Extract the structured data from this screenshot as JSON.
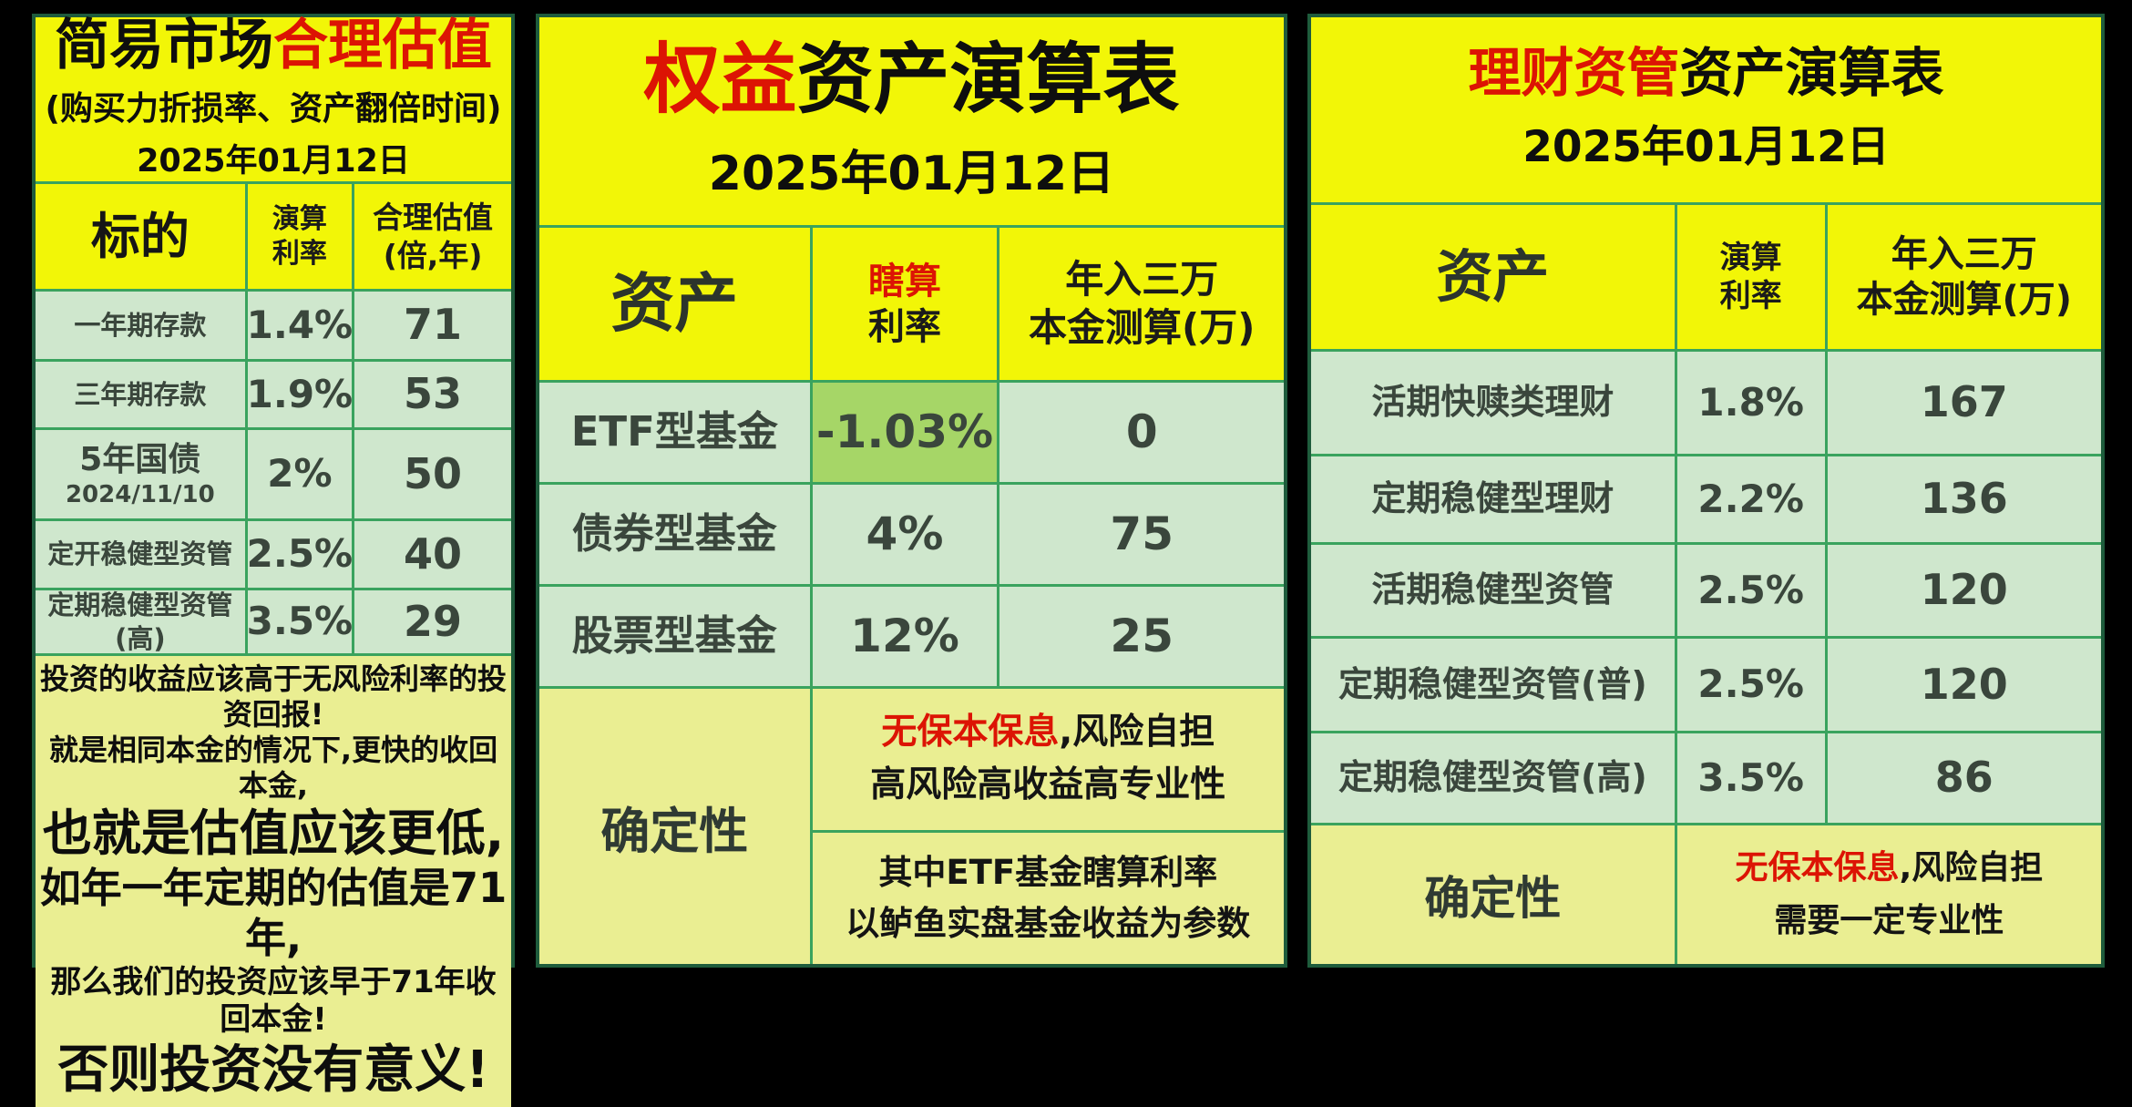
{
  "colors": {
    "panel_yellow": "#f2f607",
    "pale_yellow": "#eaee92",
    "cell_green": "#cfe7cd",
    "highlight_green": "#a6d667",
    "grid_green": "#3aa35e",
    "red": "#dc1404",
    "text_dark": "#3a463c"
  },
  "left": {
    "title_black": "简易市场",
    "title_red": "合理估值",
    "subtitle": "(购买力折损率、资产翻倍时间)",
    "date": "2025年01月12日",
    "header": {
      "col1": "标的",
      "col2_l1": "演算",
      "col2_l2": "利率",
      "col3_l1": "合理估值",
      "col3_l2": "(倍,年)"
    },
    "rows": [
      {
        "name": "一年期存款",
        "rate": "1.4%",
        "value": "71"
      },
      {
        "name": "三年期存款",
        "rate": "1.9%",
        "value": "53"
      },
      {
        "name": "5年国债",
        "name2": "2024/11/10",
        "rate": "2%",
        "value": "50"
      },
      {
        "name": "定开稳健型资管",
        "rate": "2.5%",
        "value": "40"
      },
      {
        "name": "定期稳健型资管(高)",
        "rate": "3.5%",
        "value": "29"
      }
    ],
    "notes": [
      "投资的收益应该高于无风险利率的投资回报!",
      "就是相同本金的情况下,更快的收回本金,",
      "也就是估值应该更低,",
      "如年一年定期的估值是71年,",
      "那么我们的投资应该早于71年收回本金!",
      "否则投资没有意义!"
    ]
  },
  "middle": {
    "title_red": "权益",
    "title_black": "资产演算表",
    "date": "2025年01月12日",
    "header": {
      "col1": "资产",
      "col2_l1": "瞎算",
      "col2_l2": "利率",
      "col3_l1": "年入三万",
      "col3_l2": "本金测算(万)"
    },
    "rows": [
      {
        "name": "ETF型基金",
        "rate": "-1.03%",
        "value": "0"
      },
      {
        "name": "债券型基金",
        "rate": "4%",
        "value": "75"
      },
      {
        "name": "股票型基金",
        "rate": "12%",
        "value": "25"
      }
    ],
    "certainty_label": "确定性",
    "note1_red": "无保本保息",
    "note1_rest": ",风险自担",
    "note1_line2": "高风险高收益高专业性",
    "note2_line1": "其中ETF基金瞎算利率",
    "note2_line2": "以鲈鱼实盘基金收益为参数"
  },
  "right": {
    "title_red": "理财资管",
    "title_black": "资产演算表",
    "date": "2025年01月12日",
    "header": {
      "col1": "资产",
      "col2_l1": "演算",
      "col2_l2": "利率",
      "col3_l1": "年入三万",
      "col3_l2": "本金测算(万)"
    },
    "rows": [
      {
        "name": "活期快赎类理财",
        "rate": "1.8%",
        "value": "167"
      },
      {
        "name": "定期稳健型理财",
        "rate": "2.2%",
        "value": "136"
      },
      {
        "name": "活期稳健型资管",
        "rate": "2.5%",
        "value": "120"
      },
      {
        "name": "定期稳健型资管(普)",
        "rate": "2.5%",
        "value": "120"
      },
      {
        "name": "定期稳健型资管(高)",
        "rate": "3.5%",
        "value": "86"
      }
    ],
    "certainty_label": "确定性",
    "note_red": "无保本保息",
    "note_rest": ",风险自担",
    "note_line2": "需要一定专业性"
  }
}
